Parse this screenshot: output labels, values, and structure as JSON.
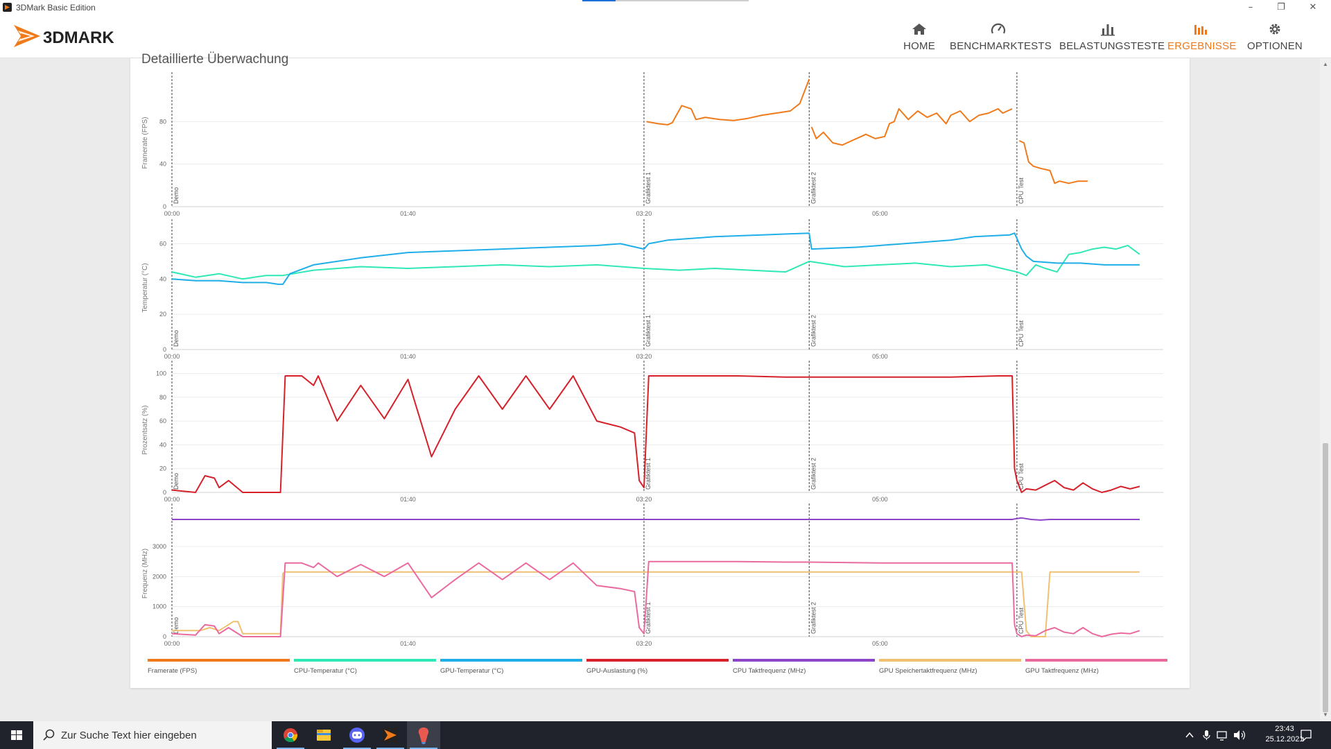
{
  "window": {
    "title": "3DMark Basic Edition",
    "minimize": "–",
    "restore": "❐",
    "close": "✕",
    "progress": 0.2
  },
  "brand": {
    "logo_text": "3DMARK",
    "accent": "#f07a1a"
  },
  "nav": [
    {
      "label": "HOME",
      "icon": "home-icon",
      "active": false
    },
    {
      "label": "BENCHMARKTESTS",
      "icon": "gauge-icon",
      "active": false
    },
    {
      "label": "BELASTUNGSTESTE",
      "icon": "bar-chart-icon",
      "active": false
    },
    {
      "label": "ERGEBNISSE",
      "icon": "results-icon",
      "active": true
    },
    {
      "label": "OPTIONEN",
      "icon": "gear-icon",
      "active": false
    }
  ],
  "section_title": "Detaillierte Überwachung",
  "chart_data": [
    {
      "type": "line",
      "ylabel": "Framerate (FPS)",
      "xticks": [
        "00:00",
        "01:40",
        "03:20",
        "05:00"
      ],
      "yticks": [
        0,
        40,
        80
      ],
      "ylim": [
        0,
        120
      ],
      "xlim": [
        0,
        420
      ],
      "markers": [
        {
          "t": 0,
          "label": "Demo"
        },
        {
          "t": 200,
          "label": "Grafiktest 1"
        },
        {
          "t": 270,
          "label": "Grafiktest 2"
        },
        {
          "t": 358,
          "label": "CPU Test"
        }
      ],
      "series": [
        {
          "name": "Framerate (FPS)",
          "color": "#f07a1a",
          "x": [
            201,
            206,
            210,
            212,
            216,
            220,
            222,
            226,
            232,
            238,
            244,
            250,
            256,
            262,
            266,
            270
          ],
          "y": [
            80,
            78,
            77,
            79,
            95,
            92,
            82,
            84,
            82,
            81,
            83,
            86,
            88,
            90,
            97,
            120
          ],
          "x2": [
            271,
            273,
            276,
            280,
            284,
            288,
            292,
            294,
            298,
            302,
            304,
            306,
            308,
            312,
            316,
            320,
            324,
            328,
            330,
            334,
            338,
            342,
            346,
            350,
            352,
            356
          ],
          "y2": [
            75,
            64,
            70,
            60,
            58,
            62,
            66,
            68,
            64,
            66,
            78,
            80,
            92,
            82,
            90,
            84,
            88,
            78,
            86,
            90,
            80,
            86,
            88,
            92,
            88,
            92
          ],
          "x3": [
            359,
            361,
            363,
            365,
            368,
            372,
            374,
            376,
            380,
            384,
            388
          ],
          "y3": [
            62,
            60,
            42,
            38,
            36,
            34,
            22,
            24,
            22,
            24,
            24
          ]
        }
      ]
    },
    {
      "type": "line",
      "ylabel": "Temperatur (°C)",
      "xticks": [
        "00:00",
        "01:40",
        "03:20",
        "05:00"
      ],
      "yticks": [
        0,
        20,
        40,
        60
      ],
      "ylim": [
        0,
        70
      ],
      "xlim": [
        0,
        420
      ],
      "markers": [
        {
          "t": 0,
          "label": "Demo"
        },
        {
          "t": 200,
          "label": "Grafiktest 1"
        },
        {
          "t": 270,
          "label": "Grafiktest 2"
        },
        {
          "t": 358,
          "label": "CPU Test"
        }
      ],
      "series": [
        {
          "name": "CPU-Temperatur (°C)",
          "color": "#2ee8b6",
          "x": [
            0,
            10,
            20,
            30,
            40,
            47,
            60,
            80,
            100,
            120,
            140,
            160,
            180,
            200,
            215,
            230,
            245,
            260,
            270,
            285,
            300,
            315,
            330,
            345,
            358,
            362,
            366,
            370,
            375,
            380,
            385,
            390,
            395,
            400,
            405,
            410
          ],
          "y": [
            44,
            41,
            43,
            40,
            42,
            42,
            45,
            47,
            46,
            47,
            48,
            47,
            48,
            46,
            45,
            46,
            45,
            44,
            50,
            47,
            48,
            49,
            47,
            48,
            44,
            42,
            48,
            46,
            44,
            54,
            55,
            57,
            58,
            57,
            59,
            54
          ]
        },
        {
          "name": "GPU-Temperatur (°C)",
          "color": "#1faee8",
          "x": [
            0,
            10,
            20,
            30,
            40,
            45,
            47,
            50,
            60,
            80,
            100,
            120,
            140,
            160,
            180,
            190,
            200,
            202,
            210,
            230,
            250,
            270,
            271,
            290,
            310,
            330,
            340,
            355,
            357,
            360,
            362,
            365,
            375,
            385,
            395,
            410
          ],
          "y": [
            40,
            39,
            39,
            38,
            38,
            37,
            37,
            43,
            48,
            52,
            55,
            56,
            57,
            58,
            59,
            60,
            57,
            60,
            62,
            64,
            65,
            66,
            57,
            58,
            60,
            62,
            64,
            65,
            66,
            57,
            53,
            50,
            49,
            49,
            48,
            48
          ]
        }
      ]
    },
    {
      "type": "line",
      "ylabel": "Prozentsatz (%)",
      "xticks": [
        "00:00",
        "01:40",
        "03:20",
        "05:00"
      ],
      "yticks": [
        0,
        20,
        40,
        60,
        80,
        100
      ],
      "ylim": [
        0,
        105
      ],
      "xlim": [
        0,
        420
      ],
      "markers": [
        {
          "t": 0,
          "label": "Demo"
        },
        {
          "t": 200,
          "label": "Grafiktest 1"
        },
        {
          "t": 270,
          "label": "Grafiktest 2"
        },
        {
          "t": 358,
          "label": "CPU Test"
        }
      ],
      "series": [
        {
          "name": "GPU-Auslastung (%)",
          "color": "#d6202a",
          "x": [
            0,
            10,
            14,
            18,
            20,
            24,
            30,
            40,
            46,
            48,
            55,
            60,
            62,
            70,
            80,
            90,
            100,
            110,
            120,
            130,
            140,
            150,
            160,
            170,
            180,
            190,
            196,
            198,
            200,
            202,
            210,
            240,
            260,
            270,
            300,
            330,
            350,
            356,
            357,
            358,
            360,
            362,
            366,
            370,
            374,
            378,
            382,
            386,
            390,
            394,
            398,
            402,
            406,
            410
          ],
          "y": [
            2,
            0,
            14,
            12,
            4,
            10,
            0,
            0,
            0,
            98,
            98,
            90,
            98,
            60,
            90,
            62,
            95,
            30,
            70,
            98,
            70,
            98,
            70,
            98,
            60,
            55,
            50,
            10,
            4,
            98,
            98,
            98,
            97,
            97,
            97,
            97,
            98,
            98,
            20,
            10,
            0,
            3,
            2,
            6,
            10,
            4,
            2,
            8,
            3,
            0,
            2,
            5,
            3,
            5
          ]
        }
      ]
    },
    {
      "type": "line",
      "ylabel": "Frequenz (MHz)",
      "xticks": [
        "00:00",
        "01:40",
        "03:20",
        "05:00"
      ],
      "yticks": [
        0,
        1000,
        2000,
        3000
      ],
      "ylim": [
        0,
        4200
      ],
      "xlim": [
        0,
        420
      ],
      "markers": [
        {
          "t": 0,
          "label": "Demo"
        },
        {
          "t": 200,
          "label": "Grafiktest 1"
        },
        {
          "t": 270,
          "label": "Grafiktest 2"
        },
        {
          "t": 358,
          "label": "CPU Test"
        }
      ],
      "series": [
        {
          "name": "CPU Taktfrequenz (MHz)",
          "color": "#8e44c8",
          "x": [
            0,
            100,
            200,
            300,
            356,
            358,
            360,
            364,
            368,
            372,
            376,
            410
          ],
          "y": [
            3900,
            3900,
            3900,
            3900,
            3900,
            3930,
            3950,
            3900,
            3880,
            3900,
            3900,
            3900
          ]
        },
        {
          "name": "GPU Speichertaktfrequenz (MHz)",
          "color": "#f0c070",
          "x": [
            0,
            12,
            16,
            20,
            24,
            26,
            28,
            30,
            46,
            47,
            48,
            100,
            150,
            200,
            202,
            250,
            300,
            358,
            360,
            362,
            364,
            366,
            370,
            372,
            374,
            380,
            390,
            410
          ],
          "y": [
            200,
            200,
            300,
            200,
            400,
            500,
            500,
            100,
            100,
            2100,
            2150,
            2150,
            2150,
            2150,
            2150,
            2150,
            2150,
            2150,
            2150,
            200,
            0,
            0,
            0,
            2150,
            2150,
            2150,
            2150,
            2150
          ]
        },
        {
          "name": "GPU Taktfrequenz (MHz)",
          "color": "#ea6aa0",
          "x": [
            0,
            10,
            14,
            18,
            20,
            24,
            30,
            40,
            46,
            48,
            55,
            60,
            62,
            70,
            80,
            90,
            100,
            110,
            120,
            130,
            140,
            150,
            160,
            170,
            180,
            190,
            196,
            198,
            200,
            202,
            210,
            240,
            260,
            270,
            300,
            330,
            350,
            356,
            357,
            358,
            360,
            362,
            366,
            370,
            374,
            378,
            382,
            386,
            390,
            394,
            398,
            402,
            406,
            410
          ],
          "y": [
            100,
            50,
            400,
            350,
            100,
            300,
            0,
            0,
            0,
            2450,
            2450,
            2300,
            2450,
            2000,
            2400,
            2000,
            2450,
            1300,
            1900,
            2450,
            1900,
            2450,
            1900,
            2450,
            1700,
            1600,
            1500,
            300,
            100,
            2500,
            2500,
            2500,
            2480,
            2480,
            2450,
            2450,
            2450,
            2450,
            400,
            100,
            0,
            50,
            30,
            200,
            300,
            150,
            100,
            300,
            100,
            0,
            80,
            120,
            100,
            200
          ]
        }
      ]
    }
  ],
  "legend": [
    {
      "label": "Framerate (FPS)",
      "color": "#f07a1a"
    },
    {
      "label": "CPU-Temperatur (°C)",
      "color": "#2ee8b6"
    },
    {
      "label": "GPU-Temperatur (°C)",
      "color": "#1faee8"
    },
    {
      "label": "GPU-Auslastung (%)",
      "color": "#d6202a"
    },
    {
      "label": "CPU Taktfrequenz (MHz)",
      "color": "#8e44c8"
    },
    {
      "label": "GPU Speichertaktfrequenz (MHz)",
      "color": "#f0c070"
    },
    {
      "label": "GPU Taktfrequenz (MHz)",
      "color": "#ea6aa0"
    }
  ],
  "taskbar": {
    "search_placeholder": "Zur Suche Text hier eingeben",
    "apps": [
      "chrome-icon",
      "file-explorer-icon",
      "discord-icon",
      "3dmark-icon",
      "paint-icon"
    ],
    "time": "23:43",
    "date": "25.12.2021"
  }
}
